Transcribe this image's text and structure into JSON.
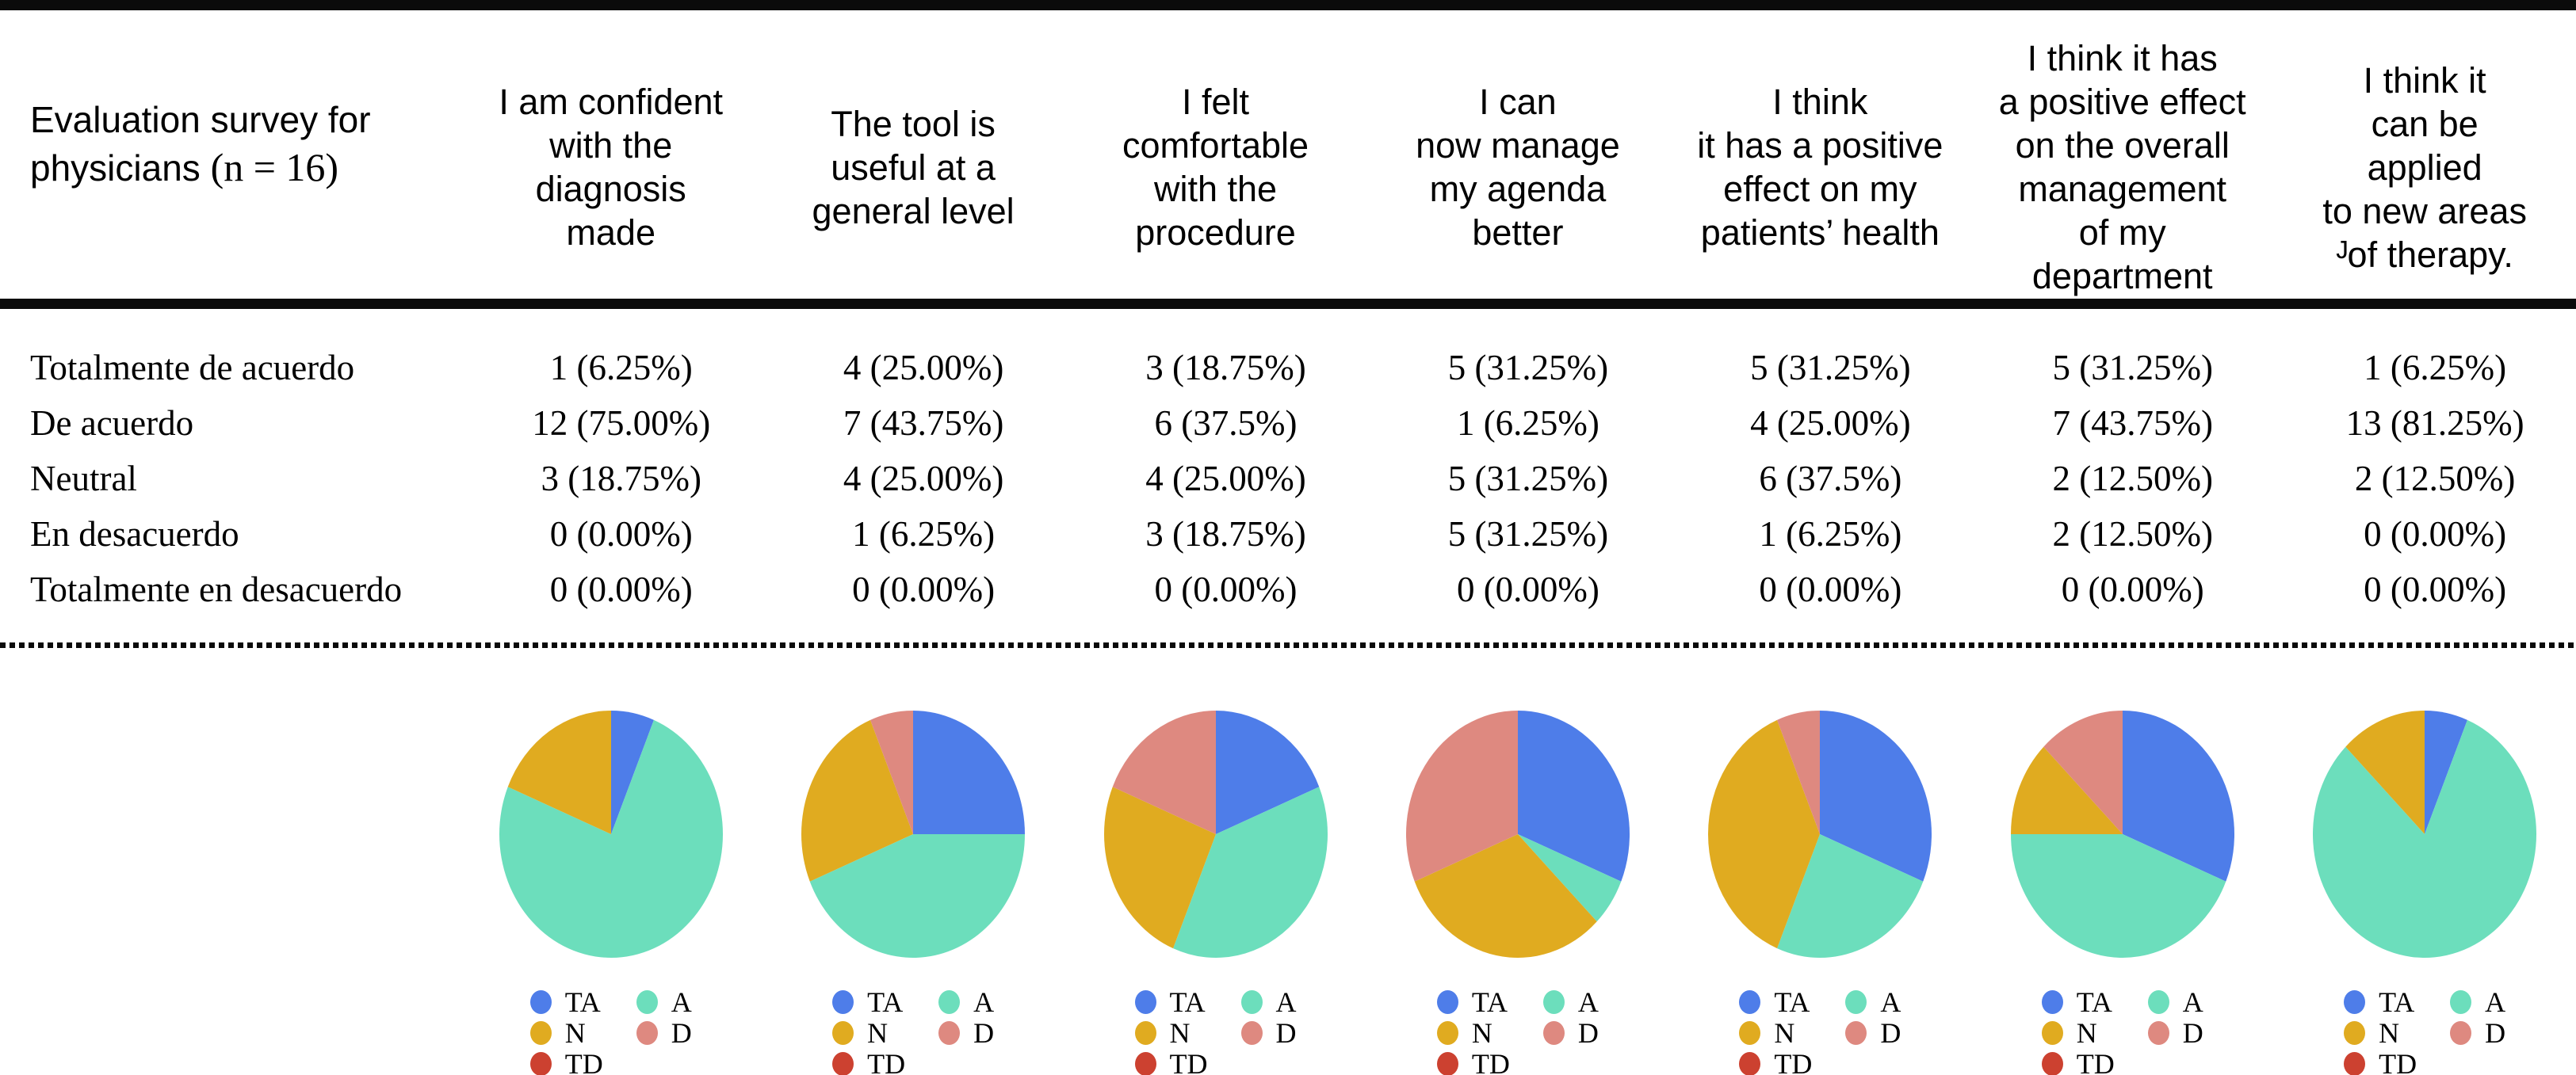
{
  "figure": {
    "corner_header": {
      "line1": "Evaluation survey for",
      "line2_sans": "physicians",
      "line2_serif": "(n = 16)"
    },
    "columns": [
      {
        "lines": [
          "I am confident",
          "with the",
          "diagnosis",
          "made"
        ]
      },
      {
        "lines": [
          "The tool is",
          "useful at a",
          "general level"
        ]
      },
      {
        "lines": [
          "I felt",
          "comfortable",
          "with the",
          "procedure"
        ]
      },
      {
        "lines": [
          "I can",
          "now manage",
          "my agenda",
          "better"
        ]
      },
      {
        "lines": [
          "I think",
          "it has a positive",
          "effect on my",
          "patients’ health"
        ]
      },
      {
        "lines": [
          "I think it has",
          "a positive effect",
          "on the overall",
          "management",
          "of my",
          "department"
        ]
      },
      {
        "lines": [
          "I think it",
          "can be",
          "applied",
          "to new areas",
          "ᴶof therapy."
        ]
      }
    ],
    "rows": [
      {
        "label": "Totalmente de acuerdo",
        "values": [
          "1 (6.25%)",
          "4 (25.00%)",
          "3 (18.75%)",
          "5 (31.25%)",
          "5 (31.25%)",
          "5 (31.25%)",
          "1 (6.25%)"
        ]
      },
      {
        "label": "De acuerdo",
        "values": [
          "12 (75.00%)",
          "7 (43.75%)",
          "6 (37.5%)",
          "1 (6.25%)",
          "4 (25.00%)",
          "7 (43.75%)",
          "13 (81.25%)"
        ]
      },
      {
        "label": "Neutral",
        "values": [
          "3 (18.75%)",
          "4 (25.00%)",
          "4 (25.00%)",
          "5 (31.25%)",
          "6 (37.5%)",
          "2 (12.50%)",
          "2 (12.50%)"
        ]
      },
      {
        "label": "En desacuerdo",
        "values": [
          "0 (0.00%)",
          "1 (6.25%)",
          "3 (18.75%)",
          "5 (31.25%)",
          "1 (6.25%)",
          "2 (12.50%)",
          "0 (0.00%)"
        ]
      },
      {
        "label": "Totalmente en desacuerdo",
        "values": [
          "0 (0.00%)",
          "0 (0.00%)",
          "0 (0.00%)",
          "0 (0.00%)",
          "0 (0.00%)",
          "0 (0.00%)",
          "0 (0.00%)"
        ]
      }
    ],
    "legend": {
      "columns": [
        [
          "TA",
          "N",
          "TD"
        ],
        [
          "A",
          "D"
        ]
      ],
      "labels": {
        "TA": "TA",
        "A": "A",
        "N": "N",
        "D": "D",
        "TD": "TD"
      }
    },
    "colors": {
      "TA": "#4E7DE9",
      "A": "#6CDEBC",
      "N": "#E0AB20",
      "D": "#DE8980",
      "TD": "#CC4130"
    }
  },
  "chart_data": {
    "type": "pie",
    "n": 16,
    "categories": [
      "TA",
      "A",
      "N",
      "D",
      "TD"
    ],
    "category_names": {
      "TA": "Totalmente de acuerdo",
      "A": "De acuerdo",
      "N": "Neutral",
      "D": "En desacuerdo",
      "TD": "Totalmente en desacuerdo"
    },
    "slice_order": "clockwise from 12 o'clock: TA, A, N, D, TD",
    "legend_position": "below each pie, two columns: TA/N/TD and A/D",
    "pies": [
      {
        "question": "I am confident with the diagnosis made",
        "counts": [
          1,
          12,
          3,
          0,
          0
        ],
        "percents": [
          6.25,
          75.0,
          18.75,
          0.0,
          0.0
        ]
      },
      {
        "question": "The tool is useful at a general level",
        "counts": [
          4,
          7,
          4,
          1,
          0
        ],
        "percents": [
          25.0,
          43.75,
          25.0,
          6.25,
          0.0
        ]
      },
      {
        "question": "I felt comfortable with the procedure",
        "counts": [
          3,
          6,
          4,
          3,
          0
        ],
        "percents": [
          18.75,
          37.5,
          25.0,
          18.75,
          0.0
        ]
      },
      {
        "question": "I can now manage my agenda better",
        "counts": [
          5,
          1,
          5,
          5,
          0
        ],
        "percents": [
          31.25,
          6.25,
          31.25,
          31.25,
          0.0
        ]
      },
      {
        "question": "I think it has a positive effect on my patients’ health",
        "counts": [
          5,
          4,
          6,
          1,
          0
        ],
        "percents": [
          31.25,
          25.0,
          37.5,
          6.25,
          0.0
        ]
      },
      {
        "question": "I think it has a positive effect on the overall management of my department",
        "counts": [
          5,
          7,
          2,
          2,
          0
        ],
        "percents": [
          31.25,
          43.75,
          12.5,
          12.5,
          0.0
        ]
      },
      {
        "question": "I think it can be applied to new areas of therapy.",
        "counts": [
          1,
          13,
          2,
          0,
          0
        ],
        "percents": [
          6.25,
          81.25,
          12.5,
          0.0,
          0.0
        ]
      }
    ]
  }
}
